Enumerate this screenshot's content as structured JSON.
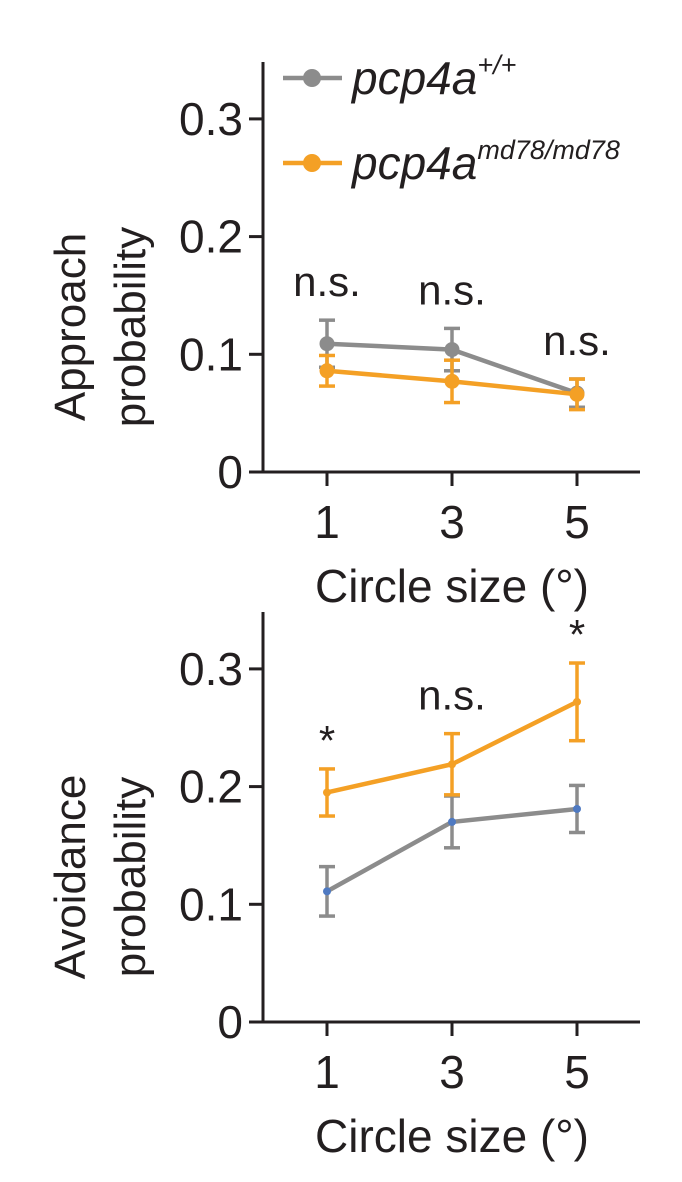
{
  "colors": {
    "wildtype": "#8c8c8c",
    "mutant": "#f4a025",
    "point_fill_bottom": "#4f7ac2",
    "axis": "#231f20"
  },
  "legend": {
    "wildtype": {
      "base": "pcp4a",
      "sup": "+/+"
    },
    "mutant": {
      "base": "pcp4a",
      "sup": "md78/md78"
    }
  },
  "chart_data": [
    {
      "type": "line",
      "ylabel_line1": "Approach",
      "ylabel_line2": "probability",
      "xlabel": "Circle size (°)",
      "categories": [
        "1",
        "3",
        "5"
      ],
      "ylim": [
        0,
        0.35
      ],
      "yticks": [
        0,
        0.1,
        0.2,
        0.3
      ],
      "ytick_labels": [
        "0",
        "0.1",
        "0.2",
        "0.3"
      ],
      "series": [
        {
          "name": "pcp4a+/+",
          "values": [
            0.109,
            0.104,
            0.067
          ],
          "errors": [
            0.02,
            0.018,
            0.012
          ]
        },
        {
          "name": "pcp4a md78/md78",
          "values": [
            0.086,
            0.077,
            0.066
          ],
          "errors": [
            0.013,
            0.018,
            0.013
          ]
        }
      ],
      "annotations": [
        "n.s.",
        "n.s.",
        "n.s."
      ]
    },
    {
      "type": "line",
      "ylabel_line1": "Avoidance",
      "ylabel_line2": "probability",
      "xlabel": "Circle size (°)",
      "categories": [
        "1",
        "3",
        "5"
      ],
      "ylim": [
        0,
        0.35
      ],
      "yticks": [
        0,
        0.1,
        0.2,
        0.3
      ],
      "ytick_labels": [
        "0",
        "0.1",
        "0.2",
        "0.3"
      ],
      "series": [
        {
          "name": "pcp4a+/+",
          "values": [
            0.111,
            0.17,
            0.181
          ],
          "errors": [
            0.021,
            0.022,
            0.02
          ]
        },
        {
          "name": "pcp4a md78/md78",
          "values": [
            0.195,
            0.219,
            0.272
          ],
          "errors": [
            0.02,
            0.026,
            0.033
          ]
        }
      ],
      "annotations": [
        "*",
        "n.s.",
        "*"
      ]
    }
  ]
}
